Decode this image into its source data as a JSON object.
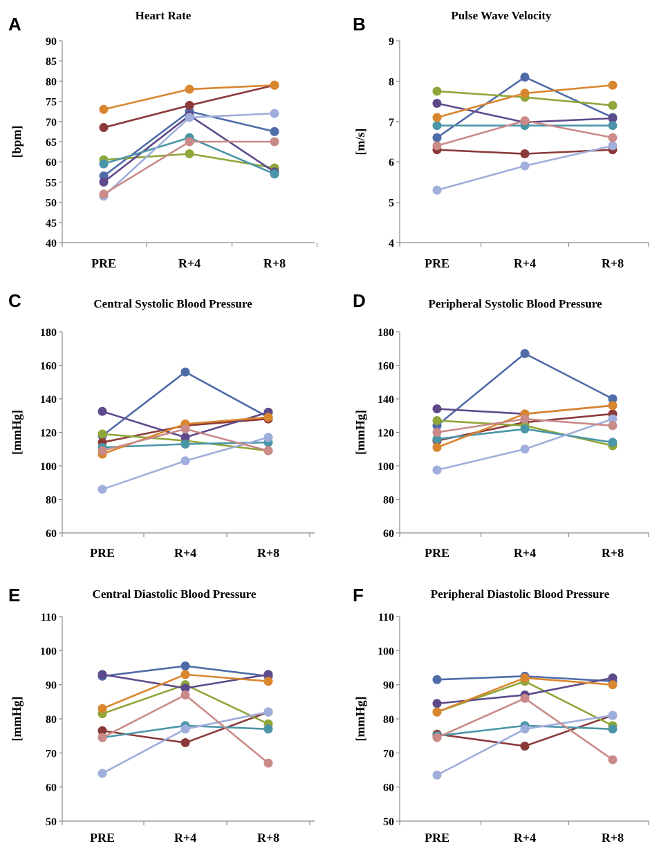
{
  "chart_data": [
    {
      "panel": "A",
      "type": "line",
      "title": "Heart Rate",
      "xlabel": "",
      "ylabel": "[bpm]",
      "categories": [
        "PRE",
        "R+4",
        "R+8"
      ],
      "ylim": [
        40,
        90
      ],
      "yticks": [
        40,
        45,
        50,
        55,
        60,
        65,
        70,
        75,
        80,
        85,
        90
      ],
      "legend": "none",
      "grid": false,
      "series": [
        {
          "color": "#4F6BA8",
          "values": [
            56.5,
            72.5,
            67.5
          ]
        },
        {
          "color": "#8B3A3A",
          "values": [
            68.5,
            74,
            79
          ]
        },
        {
          "color": "#8FA63A",
          "values": [
            60.5,
            62,
            58.5
          ]
        },
        {
          "color": "#5E4A8A",
          "values": [
            55,
            71.5,
            57.5
          ]
        },
        {
          "color": "#4A95A8",
          "values": [
            59.5,
            66,
            57
          ]
        },
        {
          "color": "#D9862E",
          "values": [
            73,
            78,
            79
          ]
        },
        {
          "color": "#9FAEDB",
          "values": [
            51.5,
            71,
            72
          ]
        },
        {
          "color": "#C98A88",
          "values": [
            52,
            65,
            65
          ]
        }
      ]
    },
    {
      "panel": "B",
      "type": "line",
      "title": "Pulse Wave Velocity",
      "xlabel": "",
      "ylabel": "[m/s]",
      "categories": [
        "PRE",
        "R+4",
        "R+8"
      ],
      "ylim": [
        4,
        9
      ],
      "yticks": [
        4,
        5,
        6,
        7,
        8,
        9
      ],
      "legend": "none",
      "grid": false,
      "series": [
        {
          "color": "#4F6BA8",
          "values": [
            6.6,
            8.1,
            7.1
          ]
        },
        {
          "color": "#8B3A3A",
          "values": [
            6.3,
            6.2,
            6.3
          ]
        },
        {
          "color": "#8FA63A",
          "values": [
            7.75,
            7.6,
            7.4
          ]
        },
        {
          "color": "#5E4A8A",
          "values": [
            7.45,
            6.98,
            7.08
          ]
        },
        {
          "color": "#4A95A8",
          "values": [
            6.9,
            6.9,
            6.9
          ]
        },
        {
          "color": "#D9862E",
          "values": [
            7.1,
            7.7,
            7.9
          ]
        },
        {
          "color": "#9FAEDB",
          "values": [
            5.3,
            5.9,
            6.4
          ]
        },
        {
          "color": "#C98A88",
          "values": [
            6.4,
            7.02,
            6.6
          ]
        }
      ]
    },
    {
      "panel": "C",
      "type": "line",
      "title": "Central Systolic Blood Pressure",
      "xlabel": "",
      "ylabel": "[mmHg]",
      "categories": [
        "PRE",
        "R+4",
        "R+8"
      ],
      "ylim": [
        60,
        180
      ],
      "yticks": [
        60,
        80,
        100,
        120,
        140,
        160,
        180
      ],
      "legend": "none",
      "grid": false,
      "series": [
        {
          "color": "#4F6BA8",
          "values": [
            118,
            156,
            129
          ]
        },
        {
          "color": "#8B3A3A",
          "values": [
            114,
            124,
            128
          ]
        },
        {
          "color": "#8FA63A",
          "values": [
            119,
            115,
            109
          ]
        },
        {
          "color": "#5E4A8A",
          "values": [
            132.5,
            117,
            132
          ]
        },
        {
          "color": "#4A95A8",
          "values": [
            111,
            113,
            114
          ]
        },
        {
          "color": "#D9862E",
          "values": [
            107,
            125,
            129
          ]
        },
        {
          "color": "#9FAEDB",
          "values": [
            86,
            103,
            117
          ]
        },
        {
          "color": "#C98A88",
          "values": [
            109,
            122,
            109
          ]
        }
      ]
    },
    {
      "panel": "D",
      "type": "line",
      "title": "Peripheral  Systolic Blood Pressure",
      "xlabel": "",
      "ylabel": "[mmHg]",
      "categories": [
        "PRE",
        "R+4",
        "R+8"
      ],
      "ylim": [
        60,
        180
      ],
      "yticks": [
        60,
        80,
        100,
        120,
        140,
        160,
        180
      ],
      "legend": "none",
      "grid": false,
      "series": [
        {
          "color": "#4F6BA8",
          "values": [
            124,
            167,
            140
          ]
        },
        {
          "color": "#8B3A3A",
          "values": [
            115,
            126,
            131
          ]
        },
        {
          "color": "#8FA63A",
          "values": [
            127,
            124,
            112
          ]
        },
        {
          "color": "#5E4A8A",
          "values": [
            134,
            131,
            136
          ]
        },
        {
          "color": "#4A95A8",
          "values": [
            116,
            122,
            114
          ]
        },
        {
          "color": "#D9862E",
          "values": [
            111,
            131,
            136
          ]
        },
        {
          "color": "#9FAEDB",
          "values": [
            97.5,
            110,
            128
          ]
        },
        {
          "color": "#C98A88",
          "values": [
            120,
            128,
            124
          ]
        }
      ]
    },
    {
      "panel": "E",
      "type": "line",
      "title": "Central Diastolic Blood Pressure",
      "xlabel": "",
      "ylabel": "[mmHg]",
      "categories": [
        "PRE",
        "R+4",
        "R+8"
      ],
      "ylim": [
        50,
        110
      ],
      "yticks": [
        50,
        60,
        70,
        80,
        90,
        100,
        110
      ],
      "legend": "none",
      "grid": false,
      "series": [
        {
          "color": "#4F6BA8",
          "values": [
            92.5,
            95.5,
            92.5
          ]
        },
        {
          "color": "#8B3A3A",
          "values": [
            76.5,
            73,
            82
          ]
        },
        {
          "color": "#8FA63A",
          "values": [
            81.5,
            90,
            78.5
          ]
        },
        {
          "color": "#5E4A8A",
          "values": [
            93,
            89,
            93
          ]
        },
        {
          "color": "#4A95A8",
          "values": [
            74.5,
            78,
            77
          ]
        },
        {
          "color": "#D9862E",
          "values": [
            83,
            93,
            91
          ]
        },
        {
          "color": "#9FAEDB",
          "values": [
            64,
            77,
            82
          ]
        },
        {
          "color": "#C98A88",
          "values": [
            74.5,
            87,
            67
          ]
        }
      ]
    },
    {
      "panel": "F",
      "type": "line",
      "title": "Peripheral  Diastolic Blood Pressure",
      "xlabel": "",
      "ylabel": "[mmHg]",
      "categories": [
        "PRE",
        "R+4",
        "R+8"
      ],
      "ylim": [
        50,
        110
      ],
      "yticks": [
        50,
        60,
        70,
        80,
        90,
        100,
        110
      ],
      "legend": "none",
      "grid": false,
      "series": [
        {
          "color": "#4F6BA8",
          "values": [
            91.5,
            92.5,
            91
          ]
        },
        {
          "color": "#8B3A3A",
          "values": [
            75.5,
            72,
            81
          ]
        },
        {
          "color": "#8FA63A",
          "values": [
            82,
            91,
            78
          ]
        },
        {
          "color": "#5E4A8A",
          "values": [
            84.5,
            87,
            92
          ]
        },
        {
          "color": "#4A95A8",
          "values": [
            75,
            78,
            77
          ]
        },
        {
          "color": "#D9862E",
          "values": [
            82,
            92,
            90
          ]
        },
        {
          "color": "#9FAEDB",
          "values": [
            63.5,
            77,
            81
          ]
        },
        {
          "color": "#C98A88",
          "values": [
            74.5,
            86,
            68
          ]
        }
      ]
    }
  ]
}
